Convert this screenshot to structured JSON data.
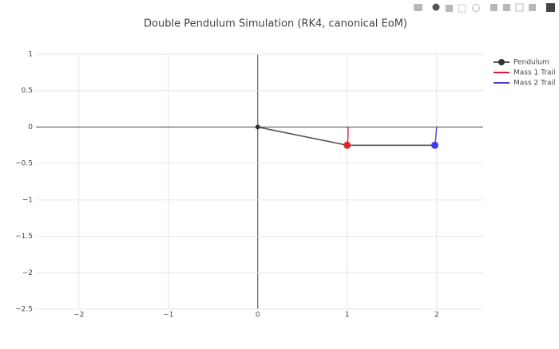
{
  "chart_data": {
    "type": "line",
    "title": "Double Pendulum Simulation (RK4, canonical EoM)",
    "xlim": [
      -2.48,
      2.52
    ],
    "ylim": [
      -2.5,
      1
    ],
    "xticks": [
      {
        "value": -2,
        "label": "−2"
      },
      {
        "value": -1,
        "label": "−1"
      },
      0,
      1,
      2
    ],
    "yticks": [
      1,
      0.5,
      0,
      {
        "value": -0.5,
        "label": "−0.5"
      },
      {
        "value": -1,
        "label": "−1"
      },
      {
        "value": -1.5,
        "label": "−1.5"
      },
      {
        "value": -2,
        "label": "−2"
      },
      {
        "value": -2.5,
        "label": "−2.5"
      }
    ],
    "grid": true,
    "legend": "top-right",
    "series": [
      {
        "name": "Pendulum",
        "color": "#555555",
        "x": [
          0,
          1.0,
          1.98
        ],
        "y": [
          0,
          -0.25,
          -0.25
        ],
        "marker_colors": [
          "#333333",
          "#e3242b",
          "#3b3bf0"
        ]
      },
      {
        "name": "Mass 1 Trail",
        "color": "#dc143c",
        "x": [
          1.01,
          1.01,
          1.0
        ],
        "y": [
          0,
          -0.15,
          -0.25
        ]
      },
      {
        "name": "Mass 2 Trail",
        "color": "#4040e0",
        "x": [
          2.0,
          1.99,
          1.98
        ],
        "y": [
          0,
          -0.15,
          -0.25
        ]
      }
    ]
  }
}
